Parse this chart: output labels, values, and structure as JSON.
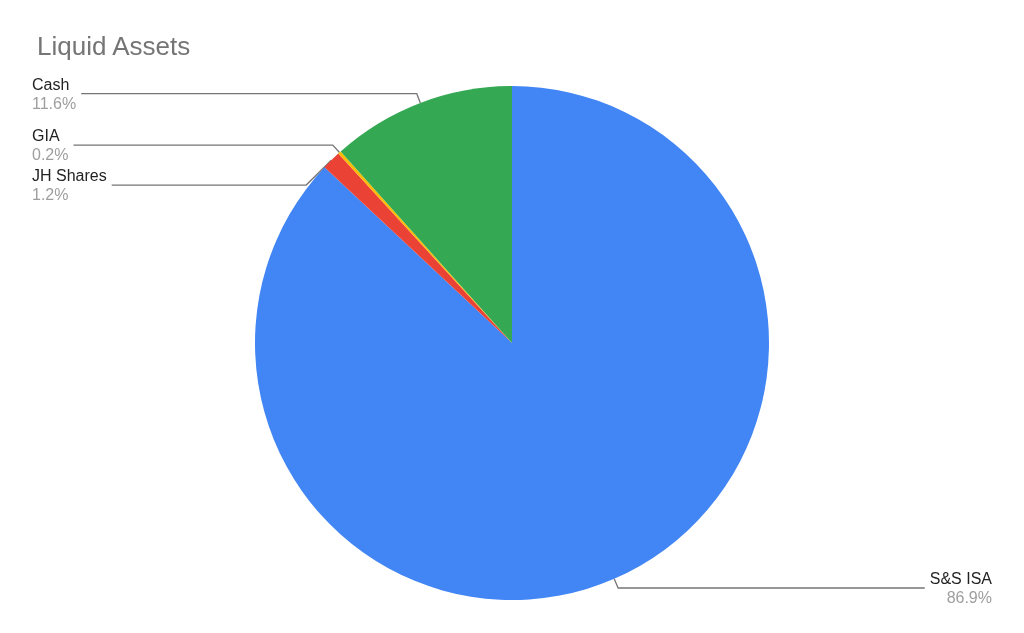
{
  "chart_data": {
    "type": "pie",
    "title": "Liquid Assets",
    "categories": [
      "S&S ISA",
      "JH Shares",
      "GIA",
      "Cash"
    ],
    "values": [
      86.9,
      1.2,
      0.2,
      11.6
    ],
    "value_labels": [
      "86.9%",
      "1.2%",
      "0.2%",
      "11.6%"
    ],
    "colors": [
      "#4285f4",
      "#ea4335",
      "#fbbc04",
      "#34a853"
    ]
  }
}
